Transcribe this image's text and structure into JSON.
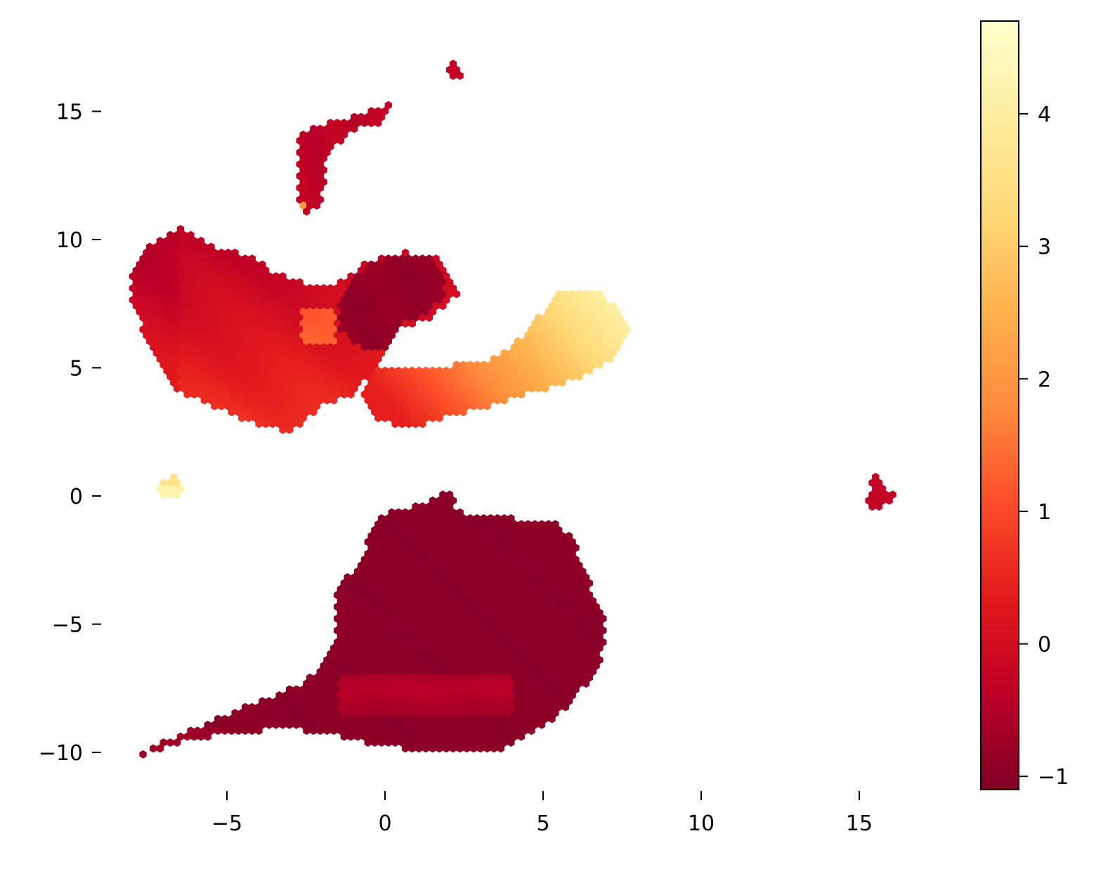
{
  "chart_data": {
    "type": "hexbin",
    "title": "",
    "xlabel": "",
    "ylabel": "",
    "xlim": [
      -10,
      20
    ],
    "ylim": [
      -11.5,
      18.5
    ],
    "x_ticks": [
      -5,
      0,
      5,
      10,
      15
    ],
    "x_tick_labels": [
      "−5",
      "0",
      "5",
      "10",
      "15"
    ],
    "y_ticks": [
      -10,
      -5,
      0,
      5,
      10,
      15
    ],
    "y_tick_labels": [
      "−10",
      "−5",
      "0",
      "5",
      "10",
      "15"
    ],
    "colorbar": {
      "colormap": "YlOrRd_r",
      "range": [
        -1.1,
        4.7
      ],
      "ticks": [
        -1,
        0,
        1,
        2,
        3,
        4
      ],
      "tick_labels": [
        "−1",
        "0",
        "1",
        "2",
        "3",
        "4"
      ]
    },
    "axes_frame": false,
    "grid": false,
    "clusters": [
      {
        "name": "upper-left crescent",
        "x_range": [
          -8,
          2.4
        ],
        "y_range": [
          2,
          10.5
        ],
        "value_range": [
          -0.5,
          1.8
        ]
      },
      {
        "name": "upper-right arm",
        "x_range": [
          0,
          7.7
        ],
        "y_range": [
          3.5,
          8.2
        ],
        "value_range": [
          0.8,
          4.2
        ]
      },
      {
        "name": "inner fold",
        "x_range": [
          -1.5,
          1.9
        ],
        "y_range": [
          5.5,
          9.5
        ],
        "value_range": [
          -1,
          -0.5
        ]
      },
      {
        "name": "stalk",
        "x_range": [
          -2.8,
          0.2
        ],
        "y_range": [
          11,
          15.3
        ],
        "value_range": [
          -0.5,
          0.3
        ]
      },
      {
        "name": "top specks",
        "x_range": [
          0.5,
          2.5
        ],
        "y_range": [
          16.2,
          17.3
        ],
        "value_range": [
          -0.2,
          -0.2
        ]
      },
      {
        "name": "small left blob",
        "x_range": [
          -7.2,
          -6.3
        ],
        "y_range": [
          0,
          0.7
        ],
        "value_range": [
          3.8,
          4.3
        ]
      },
      {
        "name": "right speck",
        "x_range": [
          15.2,
          16
        ],
        "y_range": [
          -0.5,
          0.8
        ],
        "value_range": [
          -0.3,
          -0.3
        ]
      },
      {
        "name": "lower mass",
        "x_range": [
          -8,
          7
        ],
        "y_range": [
          -10.2,
          0.3
        ],
        "value_range": [
          -1,
          0
        ]
      }
    ]
  }
}
